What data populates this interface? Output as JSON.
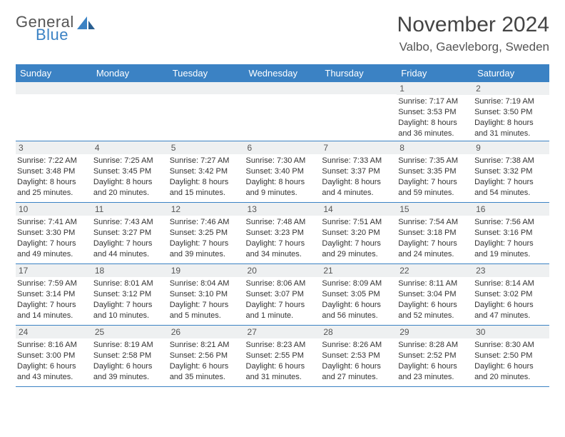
{
  "brand": {
    "word1": "General",
    "word2": "Blue",
    "logo_color": "#3b82c4",
    "text_color": "#555555"
  },
  "header": {
    "title": "November 2024",
    "location": "Valbo, Gaevleborg, Sweden"
  },
  "style": {
    "header_bg": "#3b82c4",
    "header_fg": "#ffffff",
    "row_border": "#3b82c4",
    "daynum_bg": "#eef0f1",
    "body_font_size": 11,
    "daynum_font_size": 12,
    "title_font_size": 30,
    "location_font_size": 17
  },
  "weekdays": [
    "Sunday",
    "Monday",
    "Tuesday",
    "Wednesday",
    "Thursday",
    "Friday",
    "Saturday"
  ],
  "weeks": [
    [
      {
        "n": "",
        "sr": "",
        "ss": "",
        "dl": ""
      },
      {
        "n": "",
        "sr": "",
        "ss": "",
        "dl": ""
      },
      {
        "n": "",
        "sr": "",
        "ss": "",
        "dl": ""
      },
      {
        "n": "",
        "sr": "",
        "ss": "",
        "dl": ""
      },
      {
        "n": "",
        "sr": "",
        "ss": "",
        "dl": ""
      },
      {
        "n": "1",
        "sr": "Sunrise: 7:17 AM",
        "ss": "Sunset: 3:53 PM",
        "dl": "Daylight: 8 hours and 36 minutes."
      },
      {
        "n": "2",
        "sr": "Sunrise: 7:19 AM",
        "ss": "Sunset: 3:50 PM",
        "dl": "Daylight: 8 hours and 31 minutes."
      }
    ],
    [
      {
        "n": "3",
        "sr": "Sunrise: 7:22 AM",
        "ss": "Sunset: 3:48 PM",
        "dl": "Daylight: 8 hours and 25 minutes."
      },
      {
        "n": "4",
        "sr": "Sunrise: 7:25 AM",
        "ss": "Sunset: 3:45 PM",
        "dl": "Daylight: 8 hours and 20 minutes."
      },
      {
        "n": "5",
        "sr": "Sunrise: 7:27 AM",
        "ss": "Sunset: 3:42 PM",
        "dl": "Daylight: 8 hours and 15 minutes."
      },
      {
        "n": "6",
        "sr": "Sunrise: 7:30 AM",
        "ss": "Sunset: 3:40 PM",
        "dl": "Daylight: 8 hours and 9 minutes."
      },
      {
        "n": "7",
        "sr": "Sunrise: 7:33 AM",
        "ss": "Sunset: 3:37 PM",
        "dl": "Daylight: 8 hours and 4 minutes."
      },
      {
        "n": "8",
        "sr": "Sunrise: 7:35 AM",
        "ss": "Sunset: 3:35 PM",
        "dl": "Daylight: 7 hours and 59 minutes."
      },
      {
        "n": "9",
        "sr": "Sunrise: 7:38 AM",
        "ss": "Sunset: 3:32 PM",
        "dl": "Daylight: 7 hours and 54 minutes."
      }
    ],
    [
      {
        "n": "10",
        "sr": "Sunrise: 7:41 AM",
        "ss": "Sunset: 3:30 PM",
        "dl": "Daylight: 7 hours and 49 minutes."
      },
      {
        "n": "11",
        "sr": "Sunrise: 7:43 AM",
        "ss": "Sunset: 3:27 PM",
        "dl": "Daylight: 7 hours and 44 minutes."
      },
      {
        "n": "12",
        "sr": "Sunrise: 7:46 AM",
        "ss": "Sunset: 3:25 PM",
        "dl": "Daylight: 7 hours and 39 minutes."
      },
      {
        "n": "13",
        "sr": "Sunrise: 7:48 AM",
        "ss": "Sunset: 3:23 PM",
        "dl": "Daylight: 7 hours and 34 minutes."
      },
      {
        "n": "14",
        "sr": "Sunrise: 7:51 AM",
        "ss": "Sunset: 3:20 PM",
        "dl": "Daylight: 7 hours and 29 minutes."
      },
      {
        "n": "15",
        "sr": "Sunrise: 7:54 AM",
        "ss": "Sunset: 3:18 PM",
        "dl": "Daylight: 7 hours and 24 minutes."
      },
      {
        "n": "16",
        "sr": "Sunrise: 7:56 AM",
        "ss": "Sunset: 3:16 PM",
        "dl": "Daylight: 7 hours and 19 minutes."
      }
    ],
    [
      {
        "n": "17",
        "sr": "Sunrise: 7:59 AM",
        "ss": "Sunset: 3:14 PM",
        "dl": "Daylight: 7 hours and 14 minutes."
      },
      {
        "n": "18",
        "sr": "Sunrise: 8:01 AM",
        "ss": "Sunset: 3:12 PM",
        "dl": "Daylight: 7 hours and 10 minutes."
      },
      {
        "n": "19",
        "sr": "Sunrise: 8:04 AM",
        "ss": "Sunset: 3:10 PM",
        "dl": "Daylight: 7 hours and 5 minutes."
      },
      {
        "n": "20",
        "sr": "Sunrise: 8:06 AM",
        "ss": "Sunset: 3:07 PM",
        "dl": "Daylight: 7 hours and 1 minute."
      },
      {
        "n": "21",
        "sr": "Sunrise: 8:09 AM",
        "ss": "Sunset: 3:05 PM",
        "dl": "Daylight: 6 hours and 56 minutes."
      },
      {
        "n": "22",
        "sr": "Sunrise: 8:11 AM",
        "ss": "Sunset: 3:04 PM",
        "dl": "Daylight: 6 hours and 52 minutes."
      },
      {
        "n": "23",
        "sr": "Sunrise: 8:14 AM",
        "ss": "Sunset: 3:02 PM",
        "dl": "Daylight: 6 hours and 47 minutes."
      }
    ],
    [
      {
        "n": "24",
        "sr": "Sunrise: 8:16 AM",
        "ss": "Sunset: 3:00 PM",
        "dl": "Daylight: 6 hours and 43 minutes."
      },
      {
        "n": "25",
        "sr": "Sunrise: 8:19 AM",
        "ss": "Sunset: 2:58 PM",
        "dl": "Daylight: 6 hours and 39 minutes."
      },
      {
        "n": "26",
        "sr": "Sunrise: 8:21 AM",
        "ss": "Sunset: 2:56 PM",
        "dl": "Daylight: 6 hours and 35 minutes."
      },
      {
        "n": "27",
        "sr": "Sunrise: 8:23 AM",
        "ss": "Sunset: 2:55 PM",
        "dl": "Daylight: 6 hours and 31 minutes."
      },
      {
        "n": "28",
        "sr": "Sunrise: 8:26 AM",
        "ss": "Sunset: 2:53 PM",
        "dl": "Daylight: 6 hours and 27 minutes."
      },
      {
        "n": "29",
        "sr": "Sunrise: 8:28 AM",
        "ss": "Sunset: 2:52 PM",
        "dl": "Daylight: 6 hours and 23 minutes."
      },
      {
        "n": "30",
        "sr": "Sunrise: 8:30 AM",
        "ss": "Sunset: 2:50 PM",
        "dl": "Daylight: 6 hours and 20 minutes."
      }
    ]
  ]
}
